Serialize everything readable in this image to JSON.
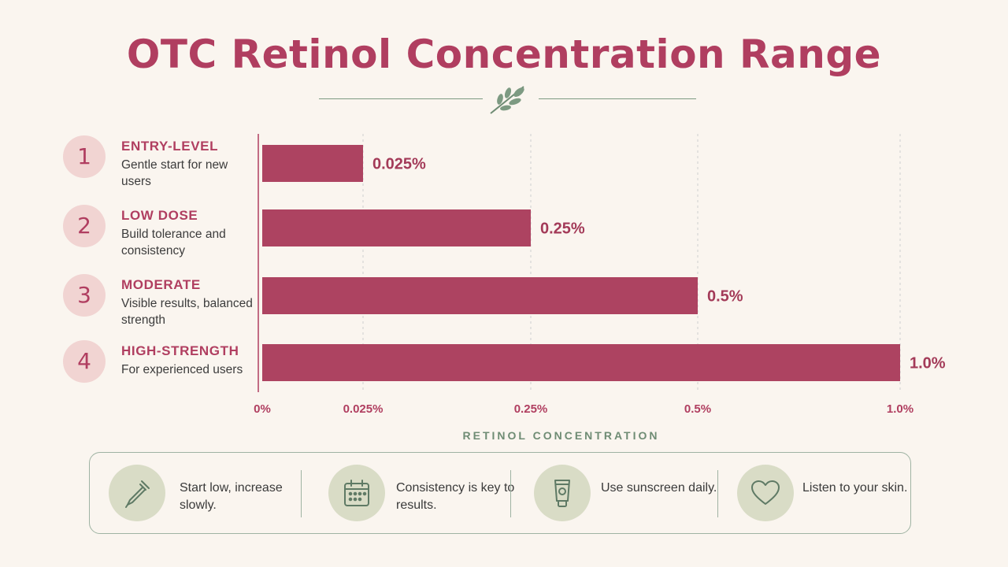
{
  "title": "OTC Retinol Concentration Range",
  "levels": [
    {
      "num": "1",
      "name": "ENTRY-LEVEL",
      "desc": "Gentle start for new users"
    },
    {
      "num": "2",
      "name": "LOW DOSE",
      "desc": "Build tolerance and consistency"
    },
    {
      "num": "3",
      "name": "MODERATE",
      "desc": "Visible results, balanced strength"
    },
    {
      "num": "4",
      "name": "HIGH-STRENGTH",
      "desc": "For experienced users"
    }
  ],
  "chart_data": {
    "type": "bar",
    "orientation": "horizontal",
    "categories": [
      "ENTRY-LEVEL",
      "LOW DOSE",
      "MODERATE",
      "HIGH-STRENGTH"
    ],
    "values": [
      0.025,
      0.25,
      0.5,
      1.0
    ],
    "value_labels": [
      "0.025%",
      "0.25%",
      "0.5%",
      "1.0%"
    ],
    "x_ticks": [
      0,
      0.025,
      0.25,
      0.5,
      1.0
    ],
    "x_tick_labels": [
      "0%",
      "0.025%",
      "0.25%",
      "0.5%",
      "1.0%"
    ],
    "xlabel": "RETINOL CONCENTRATION",
    "scale": "non-linear (ticks evenly spaced as printed)",
    "grid": "vertical dashed",
    "bar_color": "#ad4361"
  },
  "tips": [
    {
      "icon": "dropper-icon",
      "text": "Start low, increase slowly."
    },
    {
      "icon": "calendar-icon",
      "text": "Consistency is key to results."
    },
    {
      "icon": "sunscreen-tube-icon",
      "text": "Use sunscreen daily."
    },
    {
      "icon": "heart-icon",
      "text": "Listen to your skin."
    }
  ],
  "colors": {
    "accent": "#b03e60",
    "bar": "#ad4361",
    "sage": "#7d9a82",
    "background": "#faf5ef"
  }
}
